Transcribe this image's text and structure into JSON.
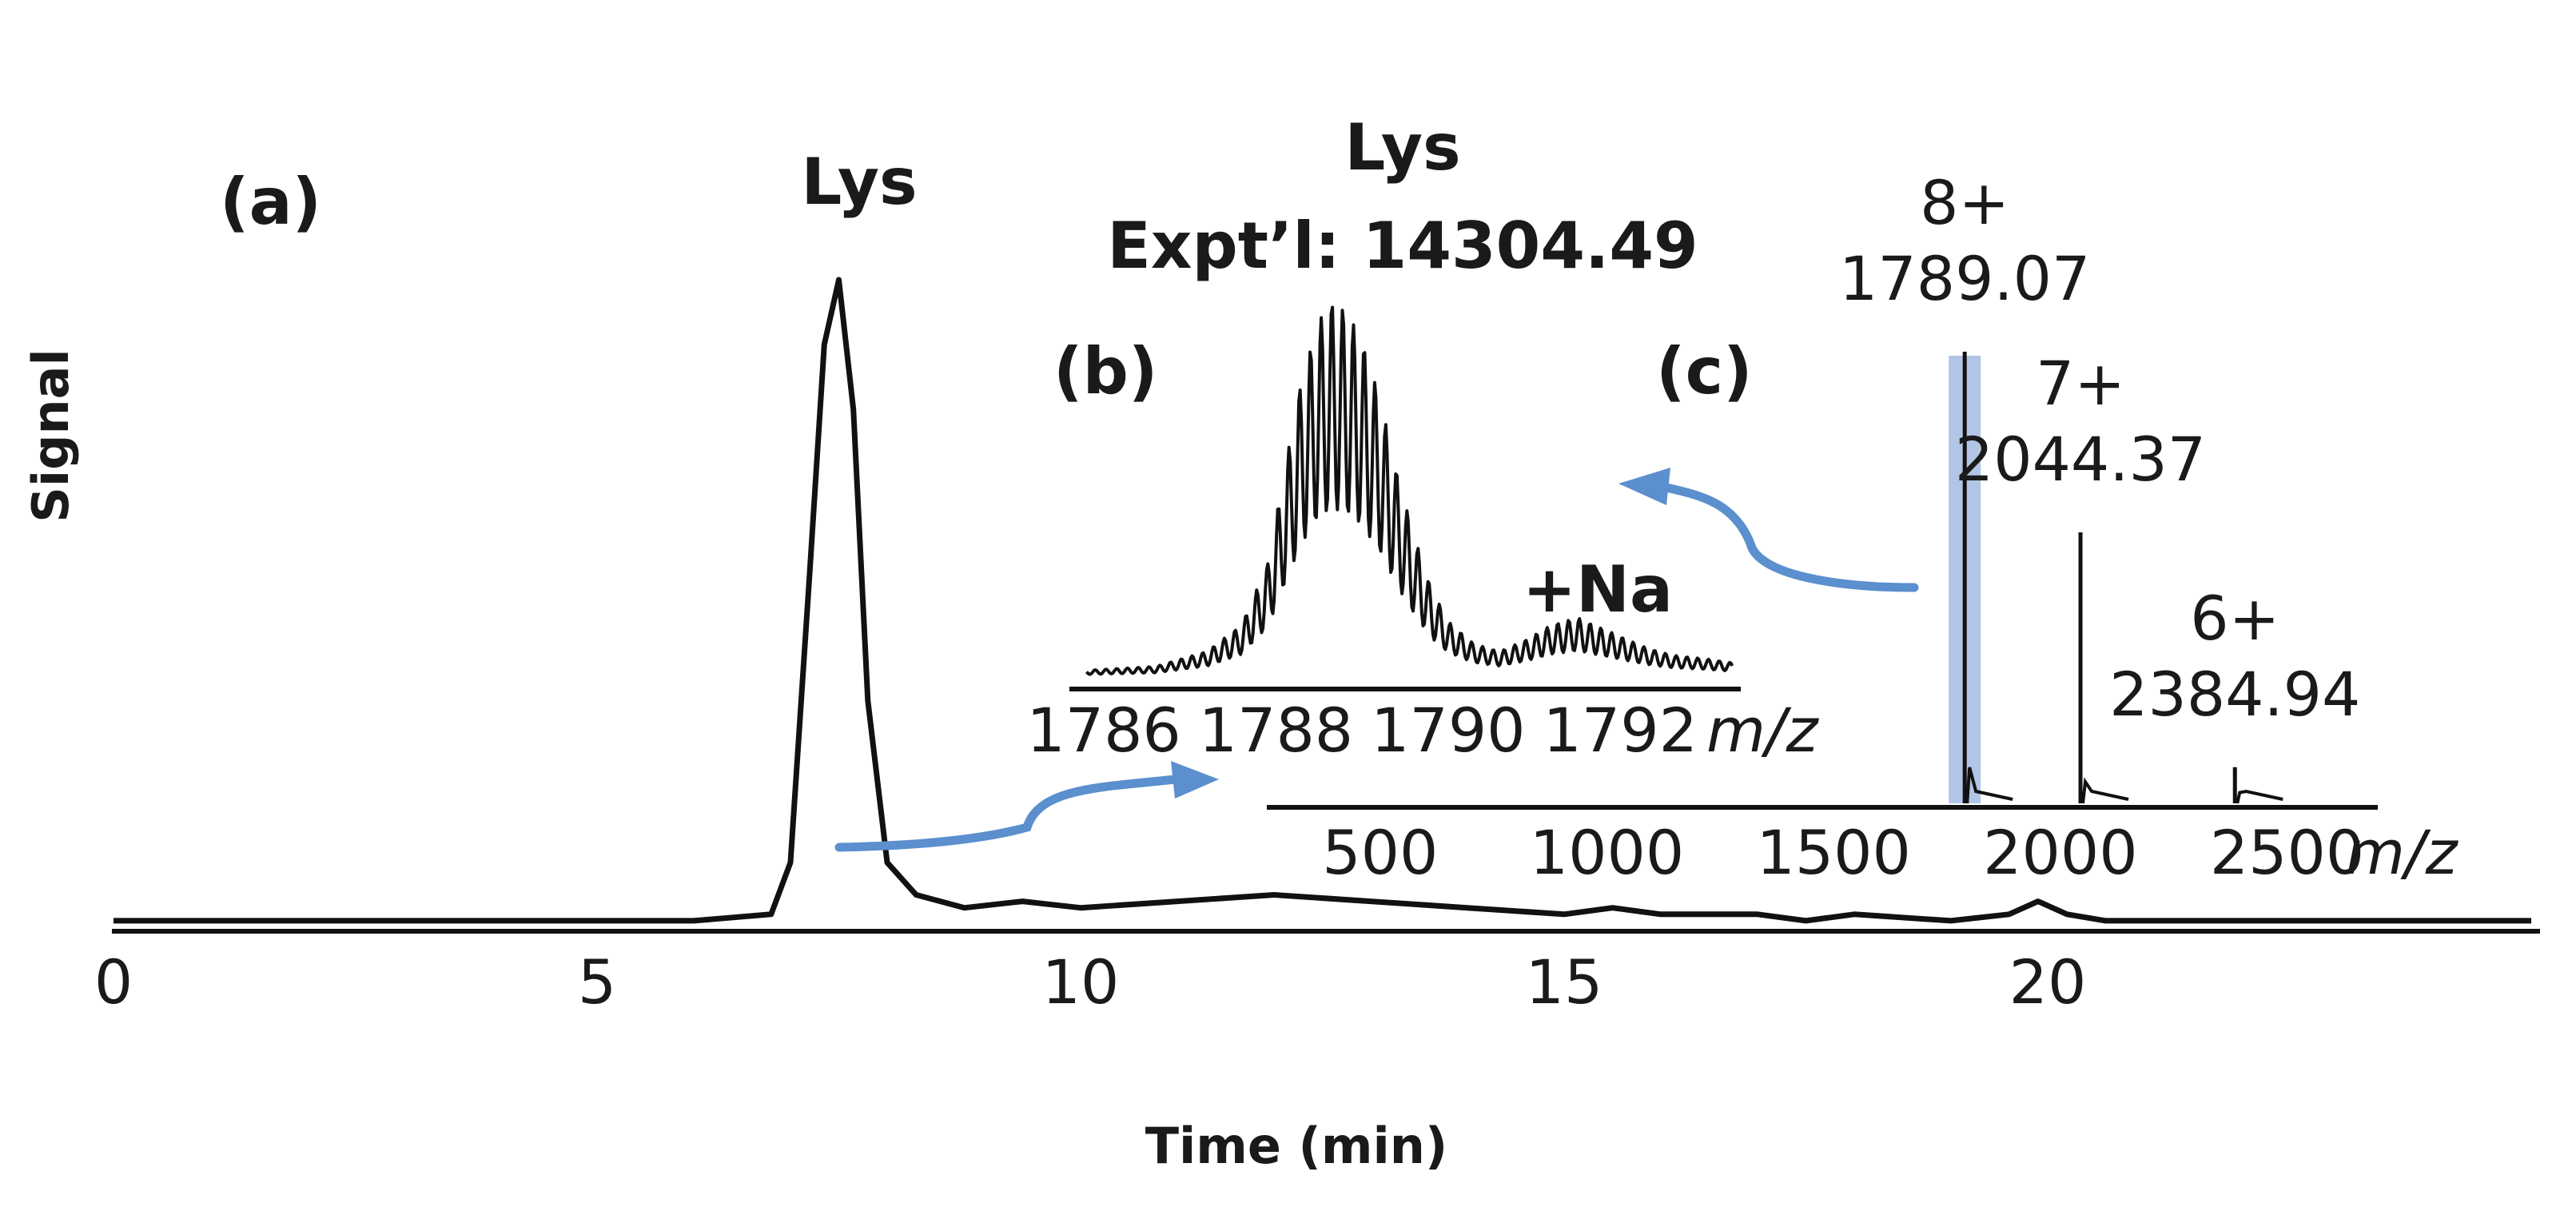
{
  "chart_data": [
    {
      "panel": "(a)",
      "type": "line",
      "xlabel": "Time (min)",
      "ylabel": "Signal",
      "xlim": [
        0,
        25
      ],
      "x_ticks": [
        "0",
        "5",
        "10",
        "15",
        "20"
      ],
      "peak_label": "Lys",
      "series": [
        {
          "x": [
            0,
            1,
            2,
            3,
            4,
            5,
            6,
            6.8,
            7.0,
            7.2,
            7.35,
            7.5,
            7.65,
            7.8,
            8.0,
            8.3,
            8.8,
            9.4,
            10,
            11,
            12,
            13,
            14,
            15,
            15.5,
            16,
            17,
            17.5,
            18,
            19,
            19.6,
            19.9,
            20.2,
            20.6,
            21,
            22,
            23,
            24,
            25
          ],
          "values": [
            0.01,
            0.01,
            0.01,
            0.01,
            0.01,
            0.01,
            0.01,
            0.02,
            0.1,
            0.55,
            0.9,
            1.0,
            0.8,
            0.35,
            0.1,
            0.05,
            0.03,
            0.04,
            0.03,
            0.04,
            0.05,
            0.04,
            0.03,
            0.02,
            0.03,
            0.02,
            0.02,
            0.01,
            0.02,
            0.01,
            0.02,
            0.04,
            0.02,
            0.01,
            0.01,
            0.01,
            0.01,
            0.01,
            0.01
          ]
        }
      ]
    },
    {
      "panel": "(b)",
      "type": "line",
      "title": "Lys",
      "subtitle": "Expt’l: 14304.49",
      "xlabel": "m/z",
      "xlim": [
        1785.6,
        1793.4
      ],
      "x_ticks": [
        "1786",
        "1788",
        "1790",
        "1792"
      ],
      "annotation": "+Na",
      "envelope": {
        "x": [
          1785.8,
          1786.6,
          1787.2,
          1787.6,
          1787.9,
          1788.1,
          1788.3,
          1788.5,
          1788.65,
          1788.8,
          1789.0,
          1789.2,
          1789.4,
          1789.6,
          1789.8,
          1790.0,
          1790.3,
          1790.6,
          1790.9,
          1791.2,
          1791.5,
          1791.7,
          1792.0,
          1792.3,
          1792.6,
          1793.0,
          1793.3
        ],
        "values": [
          0.02,
          0.03,
          0.07,
          0.14,
          0.3,
          0.55,
          0.8,
          0.95,
          1.0,
          0.98,
          0.9,
          0.75,
          0.55,
          0.38,
          0.24,
          0.15,
          0.09,
          0.07,
          0.1,
          0.14,
          0.16,
          0.14,
          0.11,
          0.08,
          0.06,
          0.05,
          0.04
        ]
      }
    },
    {
      "panel": "(c)",
      "type": "bar",
      "xlabel": "m/z",
      "xlim": [
        250,
        2700
      ],
      "x_ticks": [
        "500",
        "1000",
        "1500",
        "2000",
        "2500"
      ],
      "highlight_color": "#9fb6e0",
      "arrow_color": "#5b8fce",
      "peaks": [
        {
          "charge": "8+",
          "mz": "1789.07",
          "x": 1789.07,
          "value": 1.0
        },
        {
          "charge": "7+",
          "mz": "2044.37",
          "x": 2044.37,
          "value": 0.6
        },
        {
          "charge": "6+",
          "mz": "2384.94",
          "x": 2384.94,
          "value": 0.08
        }
      ]
    }
  ]
}
